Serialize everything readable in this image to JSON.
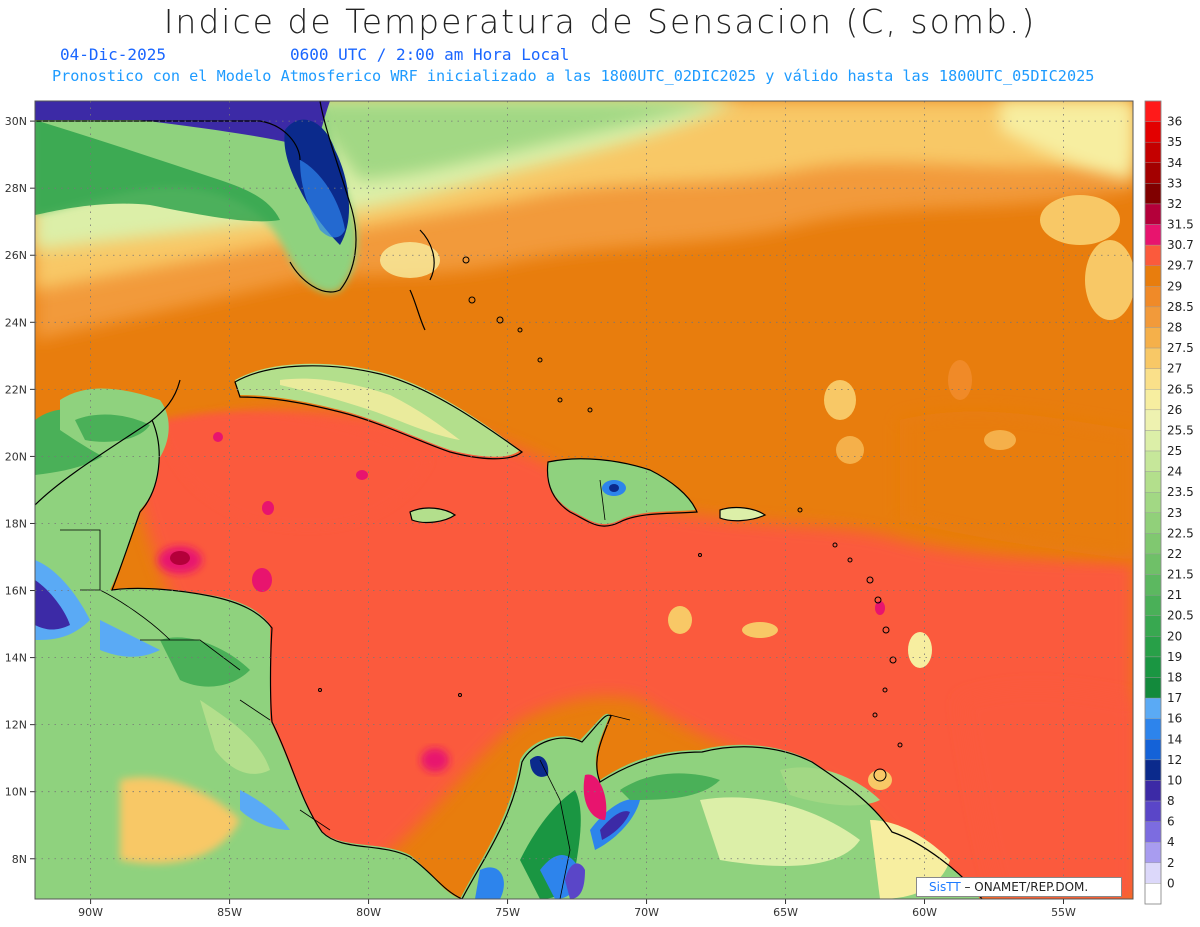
{
  "header": {
    "title": "Indice de Temperatura de Sensacion (C, somb.)",
    "date": "04-Dic-2025",
    "time": "0600 UTC / 2:00 am Hora Local",
    "model_line": "Pronostico con el Modelo Atmosferico WRF inicializado a las 1800UTC_02DIC2025 y válido hasta las  1800UTC_05DIC2025"
  },
  "credit": {
    "brand": "SisTT",
    "text": " – ONAMET/REP.DOM."
  },
  "map": {
    "lon_range": [
      -92.0,
      -52.5
    ],
    "lat_range": [
      6.8,
      30.6
    ],
    "lon_ticks": [
      {
        "value": -90,
        "label": "90W"
      },
      {
        "value": -85,
        "label": "85W"
      },
      {
        "value": -80,
        "label": "80W"
      },
      {
        "value": -75,
        "label": "75W"
      },
      {
        "value": -70,
        "label": "70W"
      },
      {
        "value": -65,
        "label": "65W"
      },
      {
        "value": -60,
        "label": "60W"
      },
      {
        "value": -55,
        "label": "55W"
      }
    ],
    "lat_ticks": [
      {
        "value": 30,
        "label": "30N"
      },
      {
        "value": 28,
        "label": "28N"
      },
      {
        "value": 26,
        "label": "26N"
      },
      {
        "value": 24,
        "label": "24N"
      },
      {
        "value": 22,
        "label": "22N"
      },
      {
        "value": 20,
        "label": "20N"
      },
      {
        "value": 18,
        "label": "18N"
      },
      {
        "value": 16,
        "label": "16N"
      },
      {
        "value": 14,
        "label": "14N"
      },
      {
        "value": 12,
        "label": "12N"
      },
      {
        "value": 10,
        "label": "10N"
      },
      {
        "value": 8,
        "label": "8N"
      }
    ],
    "ocean_color": "#fb5a3c",
    "land_color": "#8fd27e"
  },
  "colorbar": {
    "levels": [
      {
        "label": "36",
        "color": "#ff1a1a"
      },
      {
        "label": "35",
        "color": "#e30000"
      },
      {
        "label": "34",
        "color": "#c40000"
      },
      {
        "label": "33",
        "color": "#a30000"
      },
      {
        "label": "32",
        "color": "#800000"
      },
      {
        "label": "31.5",
        "color": "#b4003a"
      },
      {
        "label": "30.7",
        "color": "#e8146e"
      },
      {
        "label": "29.7",
        "color": "#fb5a3c"
      },
      {
        "label": "29",
        "color": "#e87d0d"
      },
      {
        "label": "28.5",
        "color": "#f08a28"
      },
      {
        "label": "28",
        "color": "#f29a3a"
      },
      {
        "label": "27.5",
        "color": "#f5b04a"
      },
      {
        "label": "27",
        "color": "#f8c866"
      },
      {
        "label": "26.5",
        "color": "#fae08a"
      },
      {
        "label": "26",
        "color": "#f7eea0"
      },
      {
        "label": "25.5",
        "color": "#eef2b0"
      },
      {
        "label": "25",
        "color": "#dcefa8"
      },
      {
        "label": "24",
        "color": "#c6e79a"
      },
      {
        "label": "23.5",
        "color": "#b3df8c"
      },
      {
        "label": "23",
        "color": "#a2d884"
      },
      {
        "label": "22.5",
        "color": "#91d07a"
      },
      {
        "label": "22",
        "color": "#80c870"
      },
      {
        "label": "21.5",
        "color": "#6fc068"
      },
      {
        "label": "21",
        "color": "#5cb860"
      },
      {
        "label": "20.5",
        "color": "#4ab058"
      },
      {
        "label": "20",
        "color": "#38a850"
      },
      {
        "label": "19",
        "color": "#28a048"
      },
      {
        "label": "18",
        "color": "#1a9642"
      },
      {
        "label": "17",
        "color": "#138a3c"
      },
      {
        "label": "16",
        "color": "#5aaaf5"
      },
      {
        "label": "14",
        "color": "#2d84ec"
      },
      {
        "label": "12",
        "color": "#1462d8"
      },
      {
        "label": "10",
        "color": "#0b2a8c"
      },
      {
        "label": "8",
        "color": "#3c2aa6"
      },
      {
        "label": "6",
        "color": "#5a46c8"
      },
      {
        "label": "4",
        "color": "#7c6ce0"
      },
      {
        "label": "2",
        "color": "#a89cf0"
      },
      {
        "label": "0",
        "color": "#dcd8fa"
      },
      {
        "label": "",
        "color": "#ffffff"
      }
    ]
  }
}
